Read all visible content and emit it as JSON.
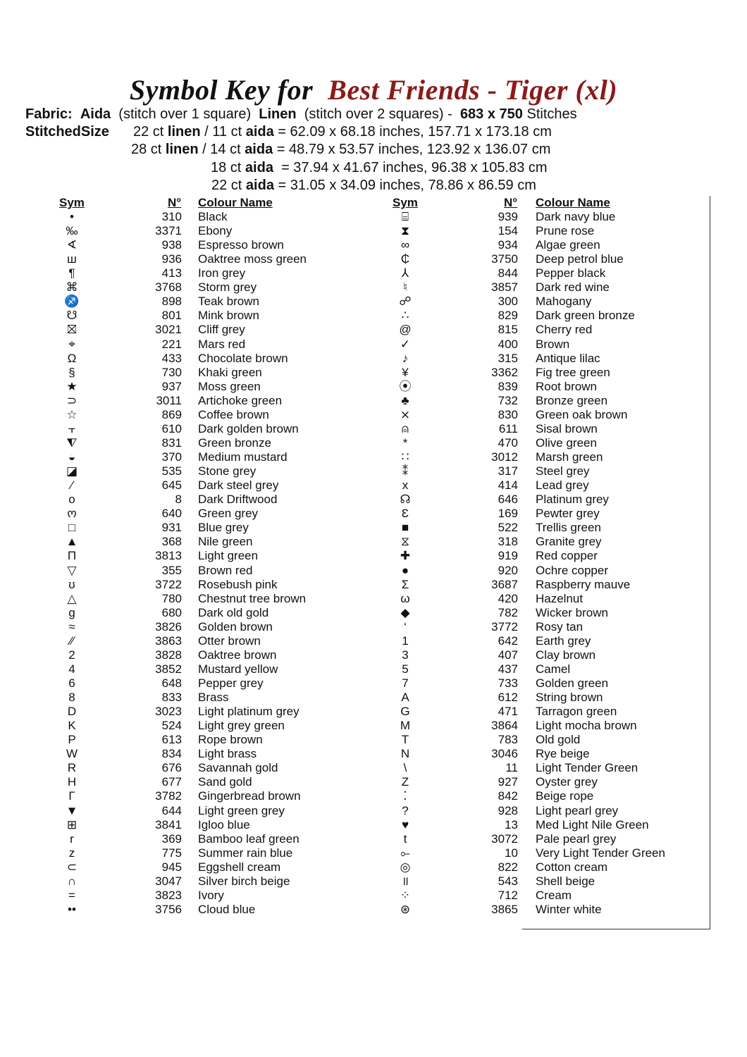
{
  "title": {
    "prefix": "Symbol Key for",
    "pattern": "Best Friends - Tiger (xl)"
  },
  "fabric": {
    "label": "Fabric:",
    "aida": "Aida",
    "aida_note": "(stitch over 1 square)",
    "linen": "Linen",
    "linen_note": "(stitch over 2 squares) -",
    "stitches": "683 x 750",
    "stitches_label": "Stitches"
  },
  "sizes": {
    "label": "StitchedSize",
    "lines": [
      {
        "a": "22 ct ",
        "b": "linen",
        "c": " / 11 ct ",
        "d": "aida",
        "e": " = 62.09 x 68.18 inches, 157.71 x 173.18 cm"
      },
      {
        "a": "28 ct ",
        "b": "linen",
        "c": " / 14 ct ",
        "d": "aida",
        "e": " = 48.79 x 53.57 inches, 123.92 x 136.07 cm"
      },
      {
        "a": "18 ct ",
        "b": "aida",
        "c": "",
        "d": "",
        "e": "  = 37.94 x 41.67 inches, 96.38 x 105.83 cm"
      },
      {
        "a": "22 ct ",
        "b": "aida",
        "c": "",
        "d": "",
        "e": " = 31.05 x 34.09 inches, 78.86 x 86.59 cm"
      }
    ]
  },
  "headers": {
    "sym": "Sym",
    "num": "N°",
    "name": "Colour Name"
  },
  "accent": "#8b1a1a",
  "left": [
    [
      "•",
      "310",
      "Black"
    ],
    [
      "‰",
      "3371",
      "Ebony"
    ],
    [
      "∢",
      "938",
      "Espresso brown"
    ],
    [
      "ш",
      "936",
      "Oaktree moss green"
    ],
    [
      "¶",
      "413",
      "Iron grey"
    ],
    [
      "⌘",
      "3768",
      "Storm grey"
    ],
    [
      "♐",
      "898",
      "Teak brown"
    ],
    [
      "☋",
      "801",
      "Mink brown"
    ],
    [
      "⛝",
      "3021",
      "Cliff grey"
    ],
    [
      "⌖",
      "221",
      "Mars red"
    ],
    [
      "Ω",
      "433",
      "Chocolate brown"
    ],
    [
      "§",
      "730",
      "Khaki green"
    ],
    [
      "★",
      "937",
      "Moss green"
    ],
    [
      "⊃",
      "3011",
      "Artichoke green"
    ],
    [
      "☆",
      "869",
      "Coffee brown"
    ],
    [
      "⫟",
      "610",
      "Dark golden brown"
    ],
    [
      "⧨",
      "831",
      "Green bronze"
    ],
    [
      "◒",
      "370",
      "Medium mustard"
    ],
    [
      "◪",
      "535",
      "Stone grey"
    ],
    [
      "⁄",
      "645",
      "Dark steel grey"
    ],
    [
      "o",
      "8",
      "Dark Driftwood"
    ],
    [
      "ო",
      "640",
      "Green grey"
    ],
    [
      "□",
      "931",
      "Blue grey"
    ],
    [
      "▲",
      "368",
      "Nile green"
    ],
    [
      "Π",
      "3813",
      "Light green"
    ],
    [
      "▽",
      "355",
      "Brown red"
    ],
    [
      "ʊ",
      "3722",
      "Rosebush pink"
    ],
    [
      "△",
      "780",
      "Chestnut tree brown"
    ],
    [
      "g",
      "680",
      "Dark old gold"
    ],
    [
      "≈",
      "3826",
      "Golden brown"
    ],
    [
      "⁄⁄",
      "3863",
      "Otter brown"
    ],
    [
      "2",
      "3828",
      "Oaktree brown"
    ],
    [
      "4",
      "3852",
      "Mustard yellow"
    ],
    [
      "6",
      "648",
      "Pepper grey"
    ],
    [
      "8",
      "833",
      "Brass"
    ],
    [
      "D",
      "3023",
      "Light platinum grey"
    ],
    [
      "K",
      "524",
      "Light grey green"
    ],
    [
      "P",
      "613",
      "Rope brown"
    ],
    [
      "W",
      "834",
      "Light brass"
    ],
    [
      "R",
      "676",
      "Savannah gold"
    ],
    [
      "H",
      "677",
      "Sand gold"
    ],
    [
      "Γ",
      "3782",
      "Gingerbread brown"
    ],
    [
      "▼",
      "644",
      "Light green grey"
    ],
    [
      "⊞",
      "3841",
      "Igloo blue"
    ],
    [
      "r",
      "369",
      "Bamboo leaf green"
    ],
    [
      "z",
      "775",
      "Summer rain blue"
    ],
    [
      "⊂",
      "945",
      "Eggshell cream"
    ],
    [
      "∩",
      "3047",
      "Silver birch beige"
    ],
    [
      "=",
      "3823",
      "Ivory"
    ],
    [
      "••",
      "3756",
      "Cloud blue"
    ]
  ],
  "right": [
    [
      "⌸",
      "939",
      "Dark navy blue"
    ],
    [
      "⧗",
      "154",
      "Prune rose"
    ],
    [
      "∞",
      "934",
      "Algae green"
    ],
    [
      "₵",
      "3750",
      "Deep petrol blue"
    ],
    [
      "⅄",
      "844",
      "Pepper black"
    ],
    [
      "♮",
      "3857",
      "Dark red wine"
    ],
    [
      "☍",
      "300",
      "Mahogany"
    ],
    [
      "∴",
      "829",
      "Dark green bronze"
    ],
    [
      "@",
      "815",
      "Cherry red"
    ],
    [
      "✓",
      "400",
      "Brown"
    ],
    [
      "♪",
      "315",
      "Antique lilac"
    ],
    [
      "¥",
      "3362",
      "Fig tree green"
    ],
    [
      "⦿",
      "839",
      "Root brown"
    ],
    [
      "♣",
      "732",
      "Bronze green"
    ],
    [
      "⨯",
      "830",
      "Green oak brown"
    ],
    [
      "⍝",
      "611",
      "Sisal brown"
    ],
    [
      "*",
      "470",
      "Olive green"
    ],
    [
      "∷",
      "3012",
      "Marsh green"
    ],
    [
      "⁑",
      "317",
      "Steel grey"
    ],
    [
      "x",
      "414",
      "Lead grey"
    ],
    [
      "☊",
      "646",
      "Platinum grey"
    ],
    [
      "Ɛ",
      "169",
      "Pewter grey"
    ],
    [
      "■",
      "522",
      "Trellis green"
    ],
    [
      "⧖",
      "318",
      "Granite grey"
    ],
    [
      "✚",
      "919",
      "Red copper"
    ],
    [
      "●",
      "920",
      "Ochre copper"
    ],
    [
      "Σ",
      "3687",
      "Raspberry mauve"
    ],
    [
      "ω",
      "420",
      "Hazelnut"
    ],
    [
      "◆",
      "782",
      "Wicker brown"
    ],
    [
      "‘",
      "3772",
      "Rosy tan"
    ],
    [
      "1",
      "642",
      "Earth grey"
    ],
    [
      "3",
      "407",
      "Clay brown"
    ],
    [
      "5",
      "437",
      "Camel"
    ],
    [
      "7",
      "733",
      "Golden green"
    ],
    [
      "A",
      "612",
      "String brown"
    ],
    [
      "G",
      "471",
      "Tarragon green"
    ],
    [
      "M",
      "3864",
      "Light mocha brown"
    ],
    [
      "T",
      "783",
      "Old gold"
    ],
    [
      "N",
      "3046",
      "Rye beige"
    ],
    [
      "\\",
      "11",
      "Light Tender Green"
    ],
    [
      "Z",
      "927",
      "Oyster grey"
    ],
    [
      "⁚",
      "842",
      "Beige rope"
    ],
    [
      "?",
      "928",
      "Light pearl grey"
    ],
    [
      "♥",
      "13",
      "Med Light Nile Green"
    ],
    [
      "t",
      "3072",
      "Pale pearl grey"
    ],
    [
      "⟜",
      "10",
      "Very Light Tender Green"
    ],
    [
      "◎",
      "822",
      "Cotton cream"
    ],
    [
      "॥",
      "543",
      "Shell beige"
    ],
    [
      "⁘",
      "712",
      "Cream"
    ],
    [
      "⊛",
      "3865",
      "Winter white"
    ]
  ]
}
